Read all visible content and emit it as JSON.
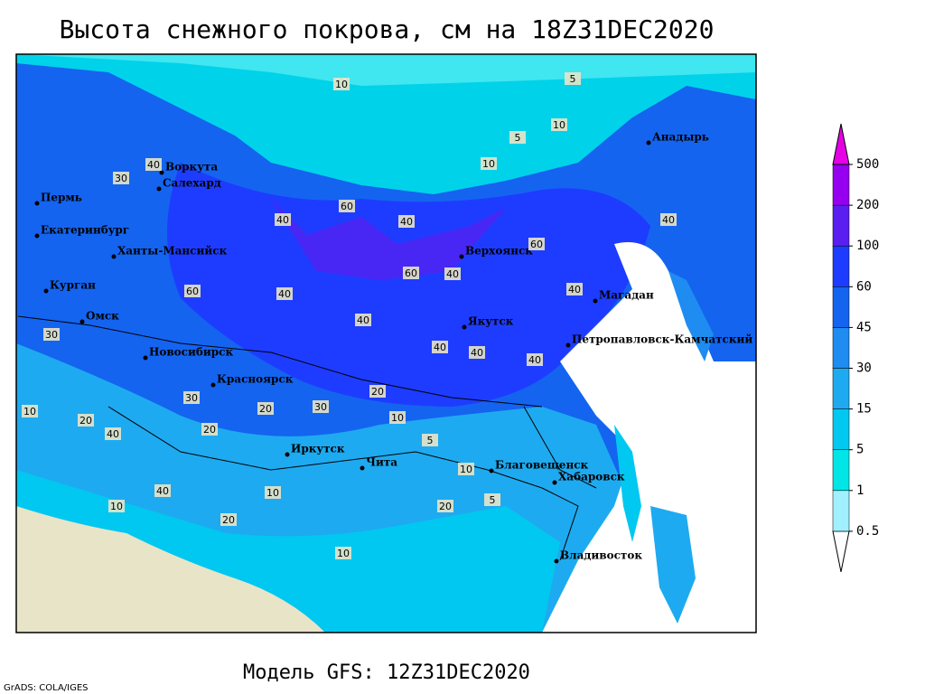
{
  "title": "Высота снежного покрова, см на 18Z31DEC2020",
  "footer": "Модель GFS: 12Z31DEC2020",
  "credit": "GrADS: COLA/IGES",
  "legend": {
    "levels": [
      0.5,
      1,
      5,
      15,
      30,
      45,
      60,
      100,
      200,
      500
    ],
    "colors": [
      "#ffffff",
      "#a0f0ff",
      "#00e6e6",
      "#00c8f0",
      "#1eaaf0",
      "#1e8cf0",
      "#1464f0",
      "#1e3cff",
      "#5a1ef0",
      "#9600f0",
      "#e600e6"
    ]
  },
  "cities": [
    "Воркута",
    "Салехард",
    "Пермь",
    "Екатеринбург",
    "Ханты-Мансийск",
    "Курган",
    "Омск",
    "Новосибирск",
    "Красноярск",
    "Иркутск",
    "Чита",
    "Благовещенск",
    "Хабаровск",
    "Владивосток",
    "Верхоянск",
    "Якутск",
    "Магадан",
    "Петропавловск-Камчатский",
    "Анадырь"
  ],
  "contour_labels": [
    10,
    5,
    10,
    5,
    10,
    40,
    30,
    40,
    60,
    40,
    60,
    40,
    60,
    40,
    40,
    40,
    60,
    40,
    40,
    30,
    20,
    40,
    30,
    20,
    10,
    20,
    10,
    5,
    10,
    20,
    10,
    5,
    20,
    10,
    40,
    30,
    20,
    40,
    10,
    40
  ]
}
